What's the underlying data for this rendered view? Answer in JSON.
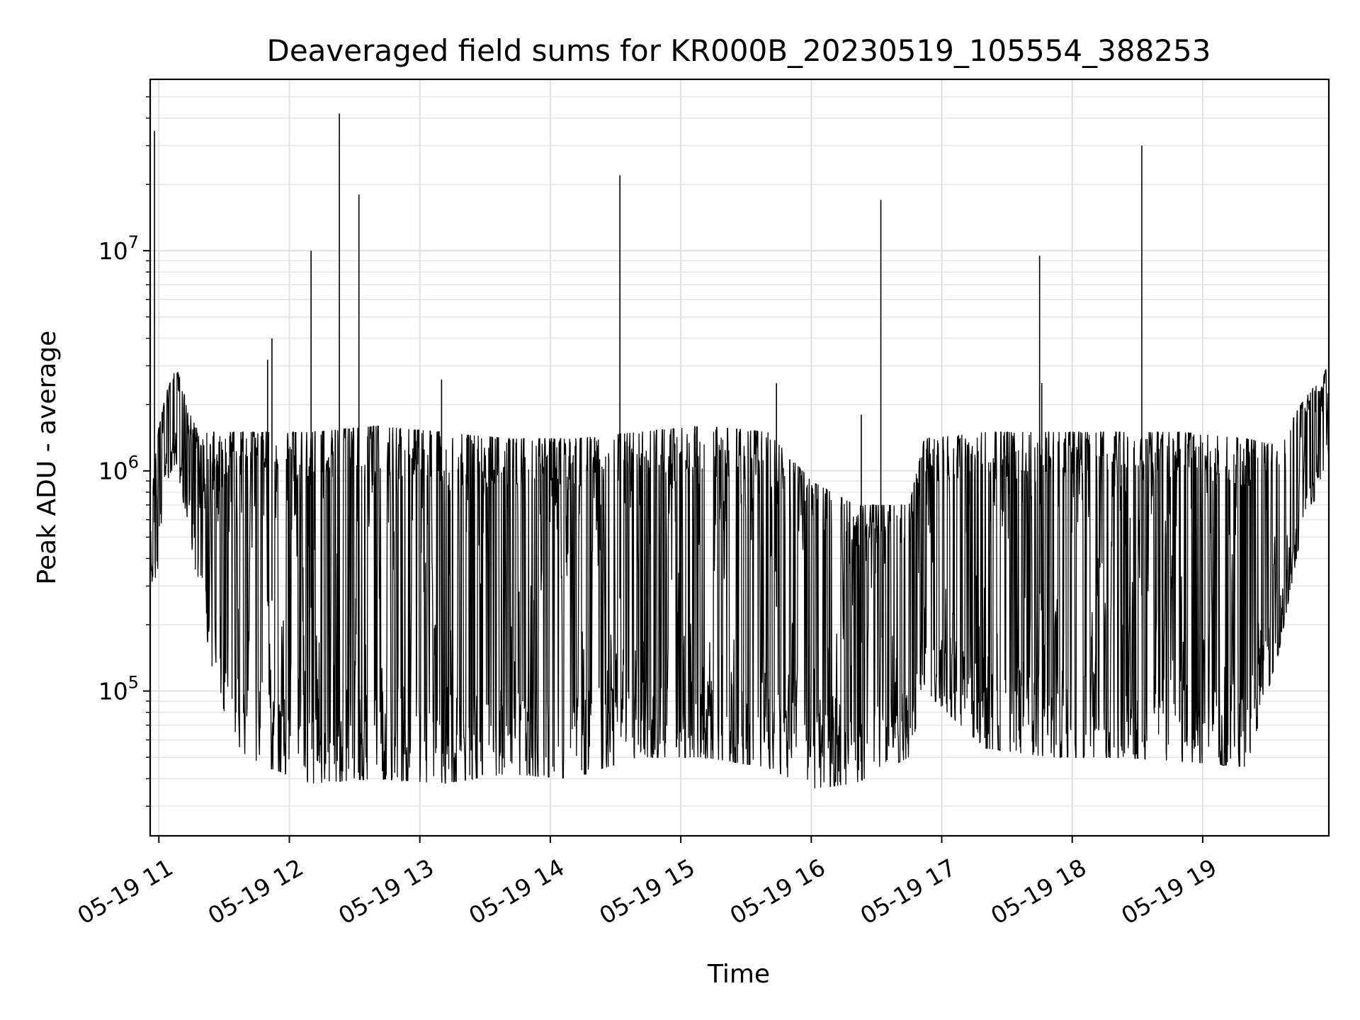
{
  "chart_data": {
    "type": "line",
    "title": "Deaveraged field sums for KR000B_20230519_105554_388253",
    "xlabel": "Time",
    "ylabel": "Peak ADU - average",
    "x_axis": {
      "kind": "time",
      "range": [
        "2023-05-19T10:56",
        "2023-05-19T19:58"
      ],
      "ticks": [
        {
          "value": "2023-05-19T11:00",
          "label": "05-19 11"
        },
        {
          "value": "2023-05-19T12:00",
          "label": "05-19 12"
        },
        {
          "value": "2023-05-19T13:00",
          "label": "05-19 13"
        },
        {
          "value": "2023-05-19T14:00",
          "label": "05-19 14"
        },
        {
          "value": "2023-05-19T15:00",
          "label": "05-19 15"
        },
        {
          "value": "2023-05-19T16:00",
          "label": "05-19 16"
        },
        {
          "value": "2023-05-19T17:00",
          "label": "05-19 17"
        },
        {
          "value": "2023-05-19T18:00",
          "label": "05-19 18"
        },
        {
          "value": "2023-05-19T19:00",
          "label": "05-19 19"
        }
      ]
    },
    "y_axis": {
      "scale": "log",
      "range": [
        22000,
        60000000
      ],
      "ticks": [
        {
          "value": 100000,
          "base": "10",
          "exp": "5"
        },
        {
          "value": 1000000,
          "base": "10",
          "exp": "6"
        },
        {
          "value": 10000000,
          "base": "10",
          "exp": "7"
        }
      ]
    },
    "grid": true,
    "grid_minor": true,
    "legend": "none",
    "line_color": "#000000",
    "envelope_note": "dense signal: top/bottom envelope of the trace",
    "envelope": [
      {
        "t": "2023-05-19T10:56",
        "top": 700000,
        "bottom": 320000
      },
      {
        "t": "2023-05-19T10:59",
        "top": 1400000,
        "bottom": 300000
      },
      {
        "t": "2023-05-19T11:03",
        "top": 2200000,
        "bottom": 900000
      },
      {
        "t": "2023-05-19T11:08",
        "top": 3000000,
        "bottom": 1000000
      },
      {
        "t": "2023-05-19T11:13",
        "top": 2000000,
        "bottom": 600000
      },
      {
        "t": "2023-05-19T11:18",
        "top": 1500000,
        "bottom": 300000
      },
      {
        "t": "2023-05-19T11:25",
        "top": 1500000,
        "bottom": 120000
      },
      {
        "t": "2023-05-19T11:35",
        "top": 1500000,
        "bottom": 55000
      },
      {
        "t": "2023-05-19T11:50",
        "top": 1500000,
        "bottom": 45000
      },
      {
        "t": "2023-05-19T12:10",
        "top": 1500000,
        "bottom": 38000
      },
      {
        "t": "2023-05-19T12:40",
        "top": 1600000,
        "bottom": 40000
      },
      {
        "t": "2023-05-19T13:10",
        "top": 1500000,
        "bottom": 38000
      },
      {
        "t": "2023-05-19T13:40",
        "top": 1400000,
        "bottom": 42000
      },
      {
        "t": "2023-05-19T14:10",
        "top": 1400000,
        "bottom": 40000
      },
      {
        "t": "2023-05-19T14:40",
        "top": 1500000,
        "bottom": 50000
      },
      {
        "t": "2023-05-19T15:10",
        "top": 1600000,
        "bottom": 50000
      },
      {
        "t": "2023-05-19T15:40",
        "top": 1500000,
        "bottom": 45000
      },
      {
        "t": "2023-05-19T16:00",
        "top": 900000,
        "bottom": 36000
      },
      {
        "t": "2023-05-19T16:20",
        "top": 700000,
        "bottom": 38000
      },
      {
        "t": "2023-05-19T16:45",
        "top": 700000,
        "bottom": 50000
      },
      {
        "t": "2023-05-19T16:52",
        "top": 1400000,
        "bottom": 100000
      },
      {
        "t": "2023-05-19T17:20",
        "top": 1500000,
        "bottom": 55000
      },
      {
        "t": "2023-05-19T17:50",
        "top": 1500000,
        "bottom": 50000
      },
      {
        "t": "2023-05-19T18:20",
        "top": 1500000,
        "bottom": 50000
      },
      {
        "t": "2023-05-19T18:50",
        "top": 1500000,
        "bottom": 48000
      },
      {
        "t": "2023-05-19T19:20",
        "top": 1400000,
        "bottom": 45000
      },
      {
        "t": "2023-05-19T19:35",
        "top": 1300000,
        "bottom": 150000
      },
      {
        "t": "2023-05-19T19:45",
        "top": 2000000,
        "bottom": 500000
      },
      {
        "t": "2023-05-19T19:58",
        "top": 3000000,
        "bottom": 1100000
      }
    ],
    "spikes": [
      {
        "t": "2023-05-19T10:58",
        "value": 35000000
      },
      {
        "t": "2023-05-19T11:50",
        "value": 3200000
      },
      {
        "t": "2023-05-19T11:52",
        "value": 4000000
      },
      {
        "t": "2023-05-19T12:10",
        "value": 10000000
      },
      {
        "t": "2023-05-19T12:23",
        "value": 42000000
      },
      {
        "t": "2023-05-19T12:32",
        "value": 18000000
      },
      {
        "t": "2023-05-19T13:10",
        "value": 2600000
      },
      {
        "t": "2023-05-19T14:32",
        "value": 22000000
      },
      {
        "t": "2023-05-19T15:44",
        "value": 2500000
      },
      {
        "t": "2023-05-19T16:23",
        "value": 1800000
      },
      {
        "t": "2023-05-19T16:32",
        "value": 17000000
      },
      {
        "t": "2023-05-19T17:45",
        "value": 9500000
      },
      {
        "t": "2023-05-19T17:46",
        "value": 2500000
      },
      {
        "t": "2023-05-19T18:32",
        "value": 30000000
      }
    ]
  }
}
